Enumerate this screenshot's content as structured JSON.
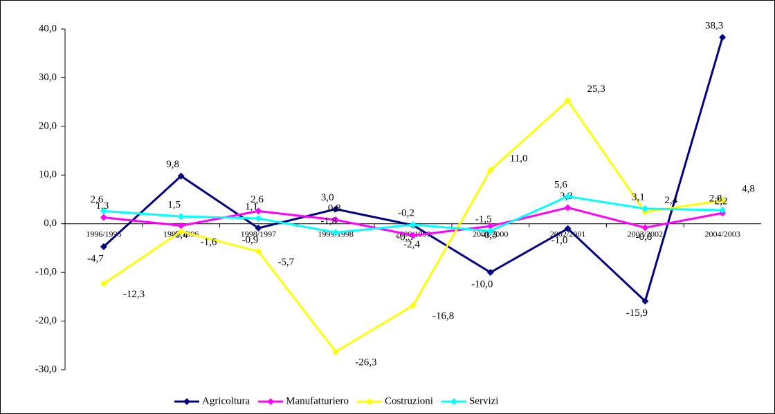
{
  "chart_data": {
    "type": "line",
    "categories": [
      "1996/1995",
      "1997/1996",
      "1998/1997",
      "1999/1998",
      "2000/1999",
      "2001/2000",
      "2002/2001",
      "2003/2002",
      "2004/2003"
    ],
    "series": [
      {
        "name": "Agricoltura",
        "color": "#000080",
        "values": [
          -4.7,
          9.8,
          -0.9,
          3.0,
          -0.3,
          -10.0,
          -1.0,
          -15.9,
          38.3
        ],
        "value_labels": [
          "-4,7",
          "9,8",
          "-0,9",
          "3,0",
          "-0,3",
          "-10,0",
          "-1,0",
          "-15,9",
          "38,3"
        ]
      },
      {
        "name": "Manufatturiero",
        "color": "#ff00ff",
        "values": [
          1.3,
          -0.4,
          2.6,
          0.8,
          -2.4,
          -0.5,
          3.3,
          -0.8,
          2.2
        ],
        "value_labels": [
          "1,3",
          "-0,4",
          "2,6",
          "0,8",
          "-2,4",
          "-0,5",
          "3,3",
          "-0,8",
          "2,2"
        ]
      },
      {
        "name": "Costruzioni",
        "color": "#ffff00",
        "values": [
          -12.3,
          -1.6,
          -5.7,
          -26.3,
          -16.8,
          11.0,
          25.3,
          2.4,
          4.8
        ],
        "value_labels": [
          "-12,3",
          "-1,6",
          "-5,7",
          "-26,3",
          "-16,8",
          "11,0",
          "25,3",
          "2,4",
          "4,8"
        ]
      },
      {
        "name": "Servizi",
        "color": "#00ffff",
        "values": [
          2.6,
          1.5,
          1.1,
          -1.8,
          -0.2,
          -1.5,
          5.6,
          3.1,
          2.8
        ],
        "value_labels": [
          "2,6",
          "1,5",
          "1,1",
          "-1,8",
          "-0,2",
          "-1,5",
          "5,6",
          "3,1",
          "2,8"
        ]
      }
    ],
    "ylim": [
      -30,
      40
    ],
    "yticks": [
      {
        "value": -30,
        "label": "-30,0"
      },
      {
        "value": -20,
        "label": "-20,0"
      },
      {
        "value": -10,
        "label": "-10,0"
      },
      {
        "value": 0,
        "label": "0,0"
      },
      {
        "value": 10,
        "label": "10,0"
      },
      {
        "value": 20,
        "label": "20,0"
      },
      {
        "value": 30,
        "label": "30,0"
      },
      {
        "value": 40,
        "label": "40,0"
      }
    ],
    "legend": "bottom"
  }
}
